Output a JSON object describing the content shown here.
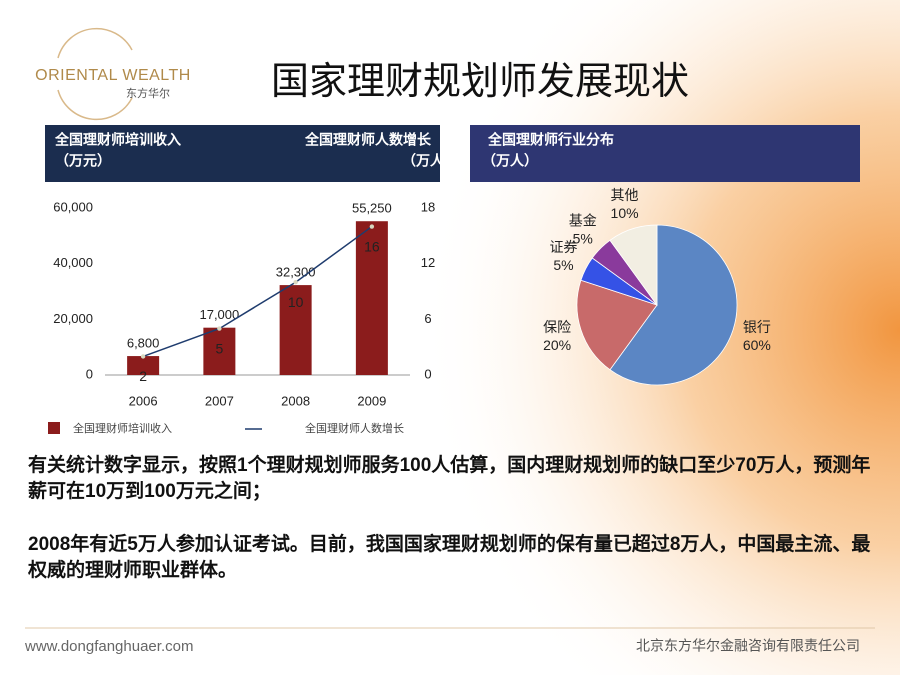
{
  "logo": {
    "name": "ORIENTAL WEALTH",
    "name_cn": "东方华尔"
  },
  "title": "国家理财规划师发展现状",
  "paragraphs": [
    "有关统计数字显示，按照1个理财规划师服务100人估算，国内理财规划师的缺口至少70万人，预测年薪可在10万到100万元之间；",
    "2008年有近5万人参加认证考试。目前，我国国家理财规划师的保有量已超过8万人，中国最主流、最权威的理财师职业群体。"
  ],
  "footer": {
    "url": "www.dongfanghuaer.com",
    "company": "北京东方华尔金融咨询有限责任公司"
  },
  "chart_data": [
    {
      "type": "bar-line",
      "title": "全国理财师培训收入",
      "subtitle": "（万元）",
      "title2": "全国理财师人数增长",
      "subtitle2": "（万人）",
      "categories": [
        "2006",
        "2007",
        "2008",
        "2009"
      ],
      "series": [
        {
          "name": "全国理财师培训收入",
          "color": "#8b1c1c",
          "values": [
            6800,
            17000,
            32300,
            55250
          ],
          "value_labels": [
            "6,800",
            "17,000",
            "32,300",
            "55,250"
          ]
        },
        {
          "name": "全国理财师人数增长",
          "color": "#1f3c6e",
          "values": [
            2,
            5,
            10,
            16
          ],
          "axis": "y2"
        }
      ],
      "ylim": [
        0,
        60000
      ],
      "yticks": [
        0,
        {
          "value": 20000,
          "label": "20,000"
        },
        {
          "value": 40000,
          "label": "40,000"
        },
        {
          "value": 60000,
          "label": "60,000"
        }
      ],
      "y2lim": [
        0,
        18
      ],
      "y2ticks": [
        0,
        6,
        12,
        18
      ],
      "grid": false
    },
    {
      "type": "pie",
      "title": "全国理财师行业分布",
      "subtitle": "（万人）",
      "categories": [
        "银行",
        "保险",
        "证券",
        "基金",
        "其他"
      ],
      "values": [
        60,
        20,
        5,
        5,
        10
      ],
      "value_labels": [
        "60%",
        "20%",
        "5%",
        "5%",
        "10%"
      ],
      "colors": [
        "#5b86c4",
        "#c86a6a",
        "#3552e6",
        "#8a3a9c",
        "#f2eee2"
      ]
    }
  ]
}
